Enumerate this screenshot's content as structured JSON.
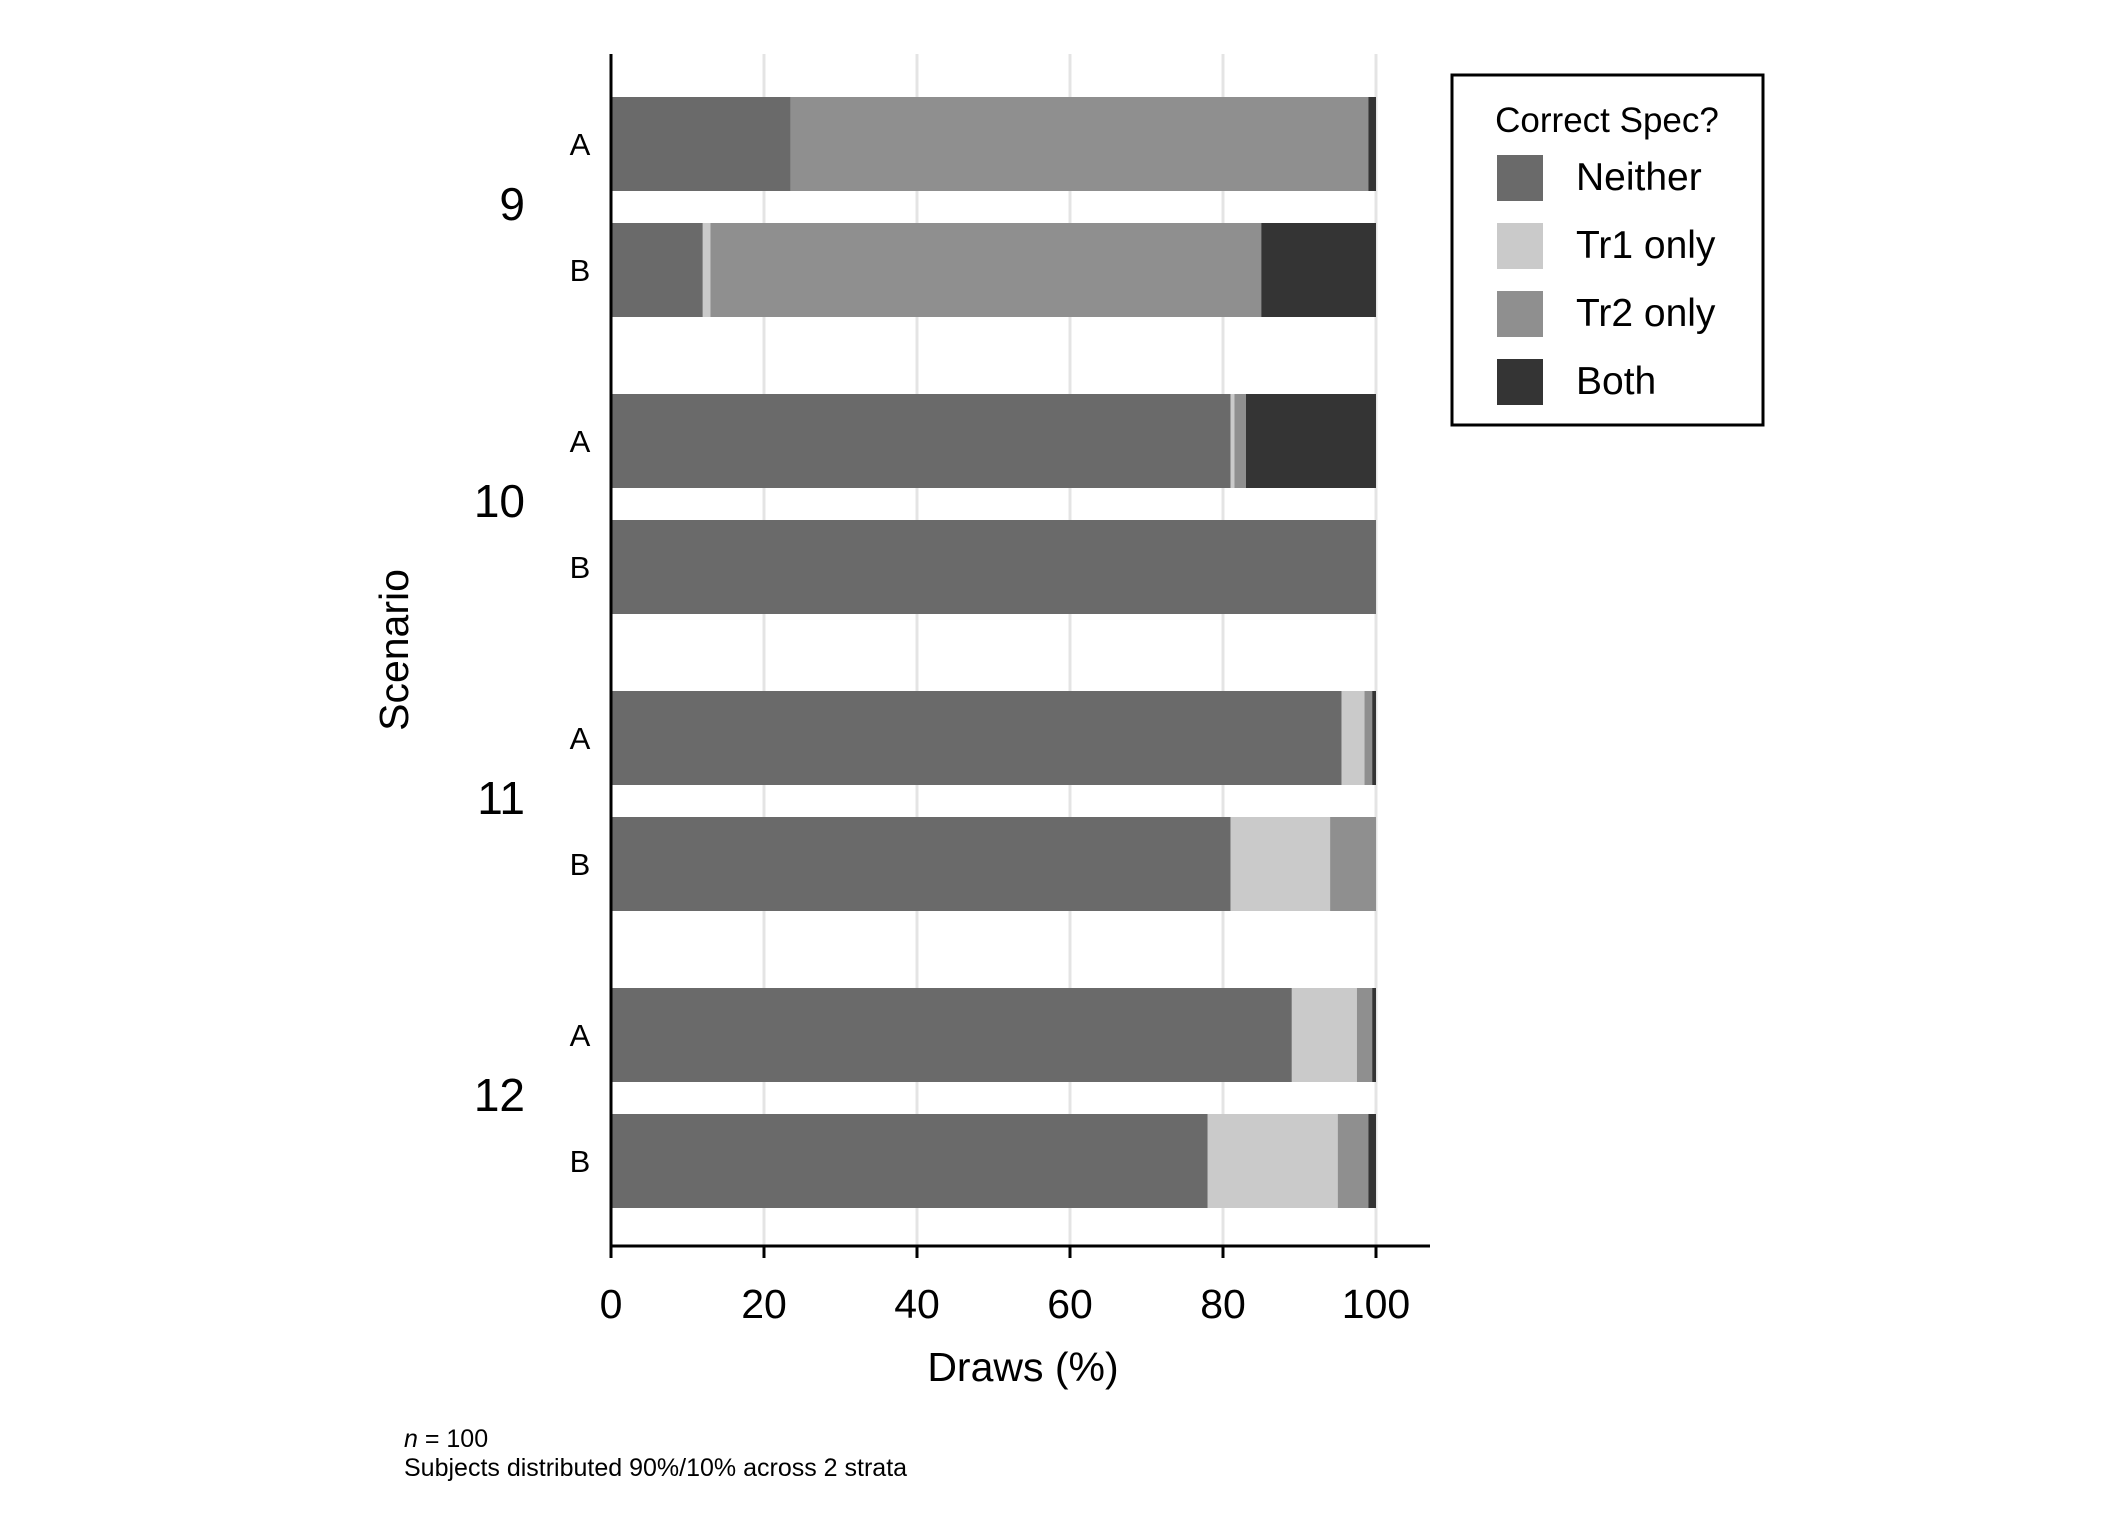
{
  "chart_data": {
    "type": "bar",
    "orientation": "horizontal",
    "stacked": true,
    "groups": [
      {
        "label": "9",
        "bars": [
          {
            "label": "A",
            "values": [
              23.5,
              0,
              75.5,
              1
            ]
          },
          {
            "label": "B",
            "values": [
              12,
              1,
              72,
              15
            ]
          }
        ]
      },
      {
        "label": "10",
        "bars": [
          {
            "label": "A",
            "values": [
              81,
              0.5,
              1.5,
              17
            ]
          },
          {
            "label": "B",
            "values": [
              100,
              0,
              0,
              0
            ]
          }
        ]
      },
      {
        "label": "11",
        "bars": [
          {
            "label": "A",
            "values": [
              95.5,
              3,
              1,
              0.5
            ]
          },
          {
            "label": "B",
            "values": [
              81,
              13,
              6,
              0
            ]
          }
        ]
      },
      {
        "label": "12",
        "bars": [
          {
            "label": "A",
            "values": [
              89,
              8.5,
              2,
              0.5
            ]
          },
          {
            "label": "B",
            "values": [
              78,
              17,
              4,
              1
            ]
          }
        ]
      }
    ],
    "series": [
      {
        "name": "Neither",
        "color": "#6a6a6a"
      },
      {
        "name": "Tr1 only",
        "color": "#cacaca"
      },
      {
        "name": "Tr2 only",
        "color": "#8f8f8f"
      },
      {
        "name": "Both",
        "color": "#343434"
      }
    ],
    "xlabel": "Draws (%)",
    "ylabel": "Scenario",
    "xlim": [
      0,
      100
    ],
    "xticks": [
      "0",
      "20",
      "40",
      "60",
      "80",
      "100"
    ],
    "grid": "vertical",
    "legend": {
      "title": "Correct Spec?",
      "placement": "right"
    }
  },
  "caption": {
    "n_label": "n",
    "n_value": " = 100",
    "note": "Subjects distributed 90%/10% across 2 strata"
  }
}
